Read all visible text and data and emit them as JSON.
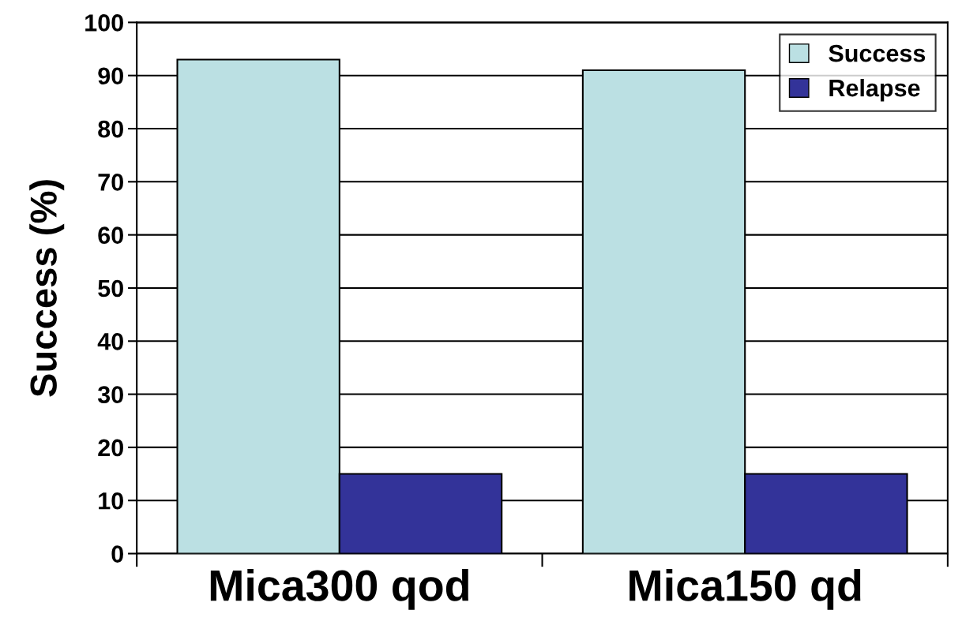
{
  "chart_data": {
    "type": "bar",
    "ylabel": "Success (%)",
    "categories": [
      "Mica300 qod",
      "Mica150 qd"
    ],
    "series": [
      {
        "name": "Success",
        "color": "#bbe0e3",
        "values": [
          93,
          91
        ]
      },
      {
        "name": "Relapse",
        "color": "#333399",
        "values": [
          15,
          15
        ]
      }
    ],
    "ylim": [
      0,
      100
    ],
    "yticks": [
      0,
      10,
      20,
      30,
      40,
      50,
      60,
      70,
      80,
      90,
      100
    ],
    "grid": "y",
    "legend": "top right"
  }
}
